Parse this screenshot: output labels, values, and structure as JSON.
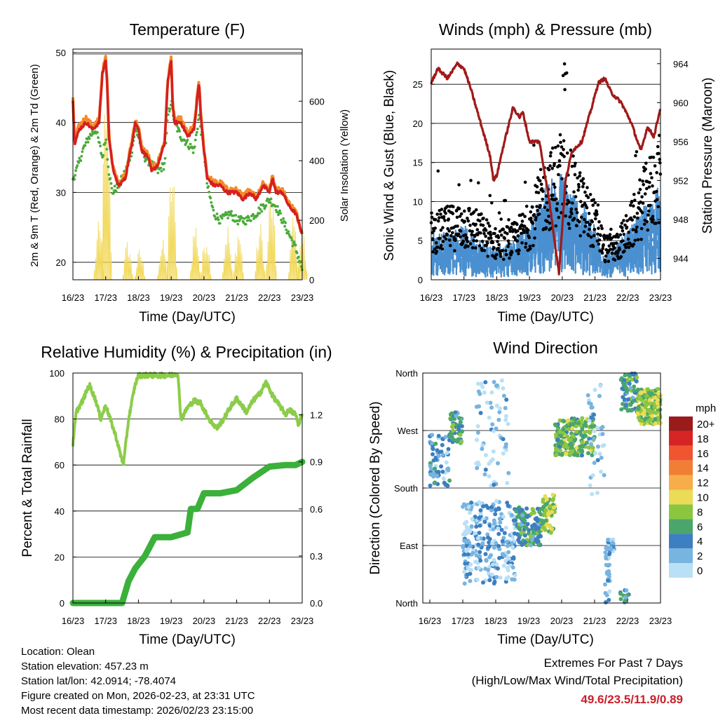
{
  "day_labels": [
    "16/23",
    "17/23",
    "18/23",
    "19/23",
    "20/23",
    "21/23",
    "22/23",
    "23/23"
  ],
  "xlabel": "Time (Day/UTC)",
  "colors": {
    "red": "#d42020",
    "orange": "#f58a2a",
    "green": "#4aaa3a",
    "yellow": "#f2d95a",
    "blue": "#4a90d0",
    "black": "#000000",
    "maroon": "#a01a1a",
    "rh": "#8ccc4a",
    "precip": "#3bb03b"
  },
  "chart_data": [
    {
      "id": "temperature",
      "type": "line",
      "title": "Temperature (F)",
      "ylabel": "2m & 9m T (Red, Orange) & 2m Td (Green)",
      "y2label": "Solar Insolation (Yellow)",
      "ylim": [
        17.5,
        50.5
      ],
      "yticks": [
        20,
        30,
        40,
        50
      ],
      "y2lim": [
        0,
        775
      ],
      "y2ticks": [
        0,
        200,
        400,
        600
      ],
      "series": [
        {
          "name": "2m T",
          "color": "red",
          "x": [
            0,
            0.05,
            0.2,
            0.4,
            0.6,
            0.8,
            0.9,
            1.0,
            1.05,
            1.1,
            1.2,
            1.3,
            1.4,
            1.6,
            1.8,
            1.9,
            2.0,
            2.1,
            2.3,
            2.4,
            2.6,
            2.8,
            2.9,
            3.0,
            3.05,
            3.1,
            3.3,
            3.5,
            3.7,
            3.85,
            3.9,
            4.0,
            4.1,
            4.3,
            4.5,
            4.7,
            5.0,
            5.2,
            5.4,
            5.6,
            5.8,
            6.0,
            6.1,
            6.2,
            6.4,
            6.6,
            6.8,
            7.0
          ],
          "y": [
            43,
            37,
            39,
            40,
            39,
            40,
            47,
            49,
            45,
            38,
            34,
            32,
            31,
            32,
            37,
            40,
            39,
            36,
            35,
            33,
            34,
            37,
            46,
            49,
            42,
            40,
            40,
            38,
            39,
            46,
            41,
            36,
            32,
            31,
            31,
            30,
            30,
            29,
            30,
            29,
            31,
            30,
            32,
            30,
            30,
            28,
            27,
            24
          ]
        },
        {
          "name": "9m T",
          "color": "orange",
          "x": [
            0,
            0.05,
            0.2,
            0.4,
            0.6,
            0.8,
            0.9,
            1.0,
            1.05,
            1.1,
            1.2,
            1.3,
            1.4,
            1.6,
            1.8,
            1.9,
            2.0,
            2.1,
            2.3,
            2.4,
            2.6,
            2.8,
            2.9,
            3.0,
            3.05,
            3.1,
            3.3,
            3.5,
            3.7,
            3.85,
            3.9,
            4.0,
            4.1,
            4.3,
            4.5,
            4.7,
            5.0,
            5.2,
            5.4,
            5.6,
            5.8,
            6.0,
            6.1,
            6.2,
            6.4,
            6.6,
            6.8,
            7.0
          ],
          "y": [
            43.3,
            37.4,
            39.6,
            40.6,
            39.4,
            40.4,
            47.3,
            49.2,
            45.3,
            38.4,
            34.4,
            32.4,
            31.4,
            32.4,
            37.4,
            40.3,
            39.3,
            36.4,
            35.4,
            33.4,
            34.4,
            37.4,
            46.2,
            49.2,
            42.3,
            40.4,
            40.4,
            38.4,
            39.4,
            46.2,
            41.3,
            36.4,
            32.4,
            31.4,
            31.4,
            30.4,
            30.3,
            29.4,
            30.4,
            29.3,
            31.4,
            30.4,
            32.3,
            30.4,
            30.3,
            28.4,
            27.3,
            24.3
          ]
        },
        {
          "name": "2m Td",
          "color": "green",
          "x": [
            0,
            0.1,
            0.3,
            0.5,
            0.7,
            0.9,
            1.0,
            1.1,
            1.2,
            1.4,
            1.6,
            1.8,
            1.9,
            2.0,
            2.2,
            2.4,
            2.6,
            2.8,
            2.9,
            3.0,
            3.1,
            3.3,
            3.5,
            3.7,
            3.85,
            4.0,
            4.1,
            4.3,
            4.5,
            4.8,
            5.0,
            5.3,
            5.6,
            5.8,
            6.0,
            6.2,
            6.4,
            6.6,
            6.8,
            7.0
          ],
          "y": [
            32,
            33,
            36,
            38,
            39,
            35,
            38,
            33,
            30,
            31,
            33,
            36,
            39,
            38,
            35,
            34,
            33,
            34,
            41,
            43,
            40,
            38,
            37,
            36,
            41,
            36,
            31,
            27,
            26,
            27,
            26,
            26,
            27,
            28,
            29,
            28,
            26,
            24,
            22,
            19
          ]
        },
        {
          "name": "Solar Insolation",
          "color": "yellow",
          "axis": "y2",
          "peaks": [
            {
              "x": 0.8,
              "v": 200
            },
            {
              "x": 1.03,
              "v": 770
            },
            {
              "x": 1.68,
              "v": 140
            },
            {
              "x": 2.05,
              "v": 110
            },
            {
              "x": 2.74,
              "v": 140
            },
            {
              "x": 3.03,
              "v": 410
            },
            {
              "x": 3.74,
              "v": 210
            },
            {
              "x": 4.07,
              "v": 180
            },
            {
              "x": 4.72,
              "v": 200
            },
            {
              "x": 5.06,
              "v": 190
            },
            {
              "x": 5.72,
              "v": 200
            },
            {
              "x": 6.06,
              "v": 330
            },
            {
              "x": 6.74,
              "v": 230
            },
            {
              "x": 7.0,
              "v": 190
            }
          ]
        }
      ]
    },
    {
      "id": "winds",
      "type": "line",
      "title": "Winds (mph) & Pressure (mb)",
      "ylabel": "Sonic Wind & Gust (Blue, Black)",
      "y2label": "Station Pressure (Maroon)",
      "ylim": [
        0,
        29.5
      ],
      "yticks": [
        0,
        5,
        10,
        15,
        20,
        25
      ],
      "y2lim": [
        941.8,
        965.5
      ],
      "y2ticks": [
        944,
        948,
        952,
        956,
        960,
        964
      ],
      "series": [
        {
          "name": "Sonic Wind",
          "color": "blue",
          "x": [
            0,
            0.5,
            1.0,
            1.5,
            2.0,
            2.5,
            3.0,
            3.5,
            4.0,
            4.5,
            5.0,
            5.3,
            5.6,
            6.0,
            6.5,
            7.0
          ],
          "y": [
            3.5,
            3.5,
            4,
            3,
            2.5,
            3,
            4,
            7,
            8,
            6,
            4,
            2,
            2.5,
            3.5,
            5.5,
            7
          ]
        },
        {
          "name": "Gust",
          "color": "black",
          "x": [
            0,
            0.5,
            1.0,
            1.5,
            2.0,
            2.5,
            3.0,
            3.5,
            4.0,
            4.5,
            5.0,
            5.3,
            5.6,
            6.0,
            6.5,
            7.0
          ],
          "y": [
            6,
            6.5,
            7,
            6,
            4.5,
            5,
            7,
            11,
            13,
            10,
            7,
            4,
            4,
            6,
            10,
            13
          ]
        },
        {
          "name": "Station Pressure",
          "color": "maroon",
          "axis": "y2",
          "x": [
            0,
            0.2,
            0.5,
            0.8,
            1.0,
            1.2,
            1.5,
            1.8,
            1.9,
            2.0,
            2.2,
            2.5,
            2.7,
            2.8,
            3.0,
            3.3,
            3.6,
            3.8,
            3.9,
            4.1,
            4.3,
            4.6,
            4.9,
            5.1,
            5.3,
            5.5,
            5.8,
            6.1,
            6.4,
            6.6,
            6.8,
            7.0
          ],
          "y": [
            962,
            963.5,
            962.5,
            964,
            963.5,
            961.5,
            958,
            954.5,
            952,
            952.5,
            955.5,
            959.5,
            958.5,
            959,
            956,
            956,
            950,
            945,
            942.5,
            952,
            955,
            956,
            959.5,
            962,
            962.5,
            961,
            960,
            958,
            955,
            957.5,
            956.5,
            959.5
          ]
        }
      ]
    },
    {
      "id": "humidity",
      "type": "line",
      "title": "Relative Humidity (%) & Precipitation (in)",
      "ylabel": "Percent & Total Rainfall",
      "ylim": [
        0,
        100
      ],
      "yticks": [
        0,
        20,
        40,
        60,
        80,
        100
      ],
      "y2lim": [
        0,
        1.4667
      ],
      "y2ticks": [
        0.0,
        0.3,
        0.6,
        0.9,
        1.2
      ],
      "y2ticklabels": [
        "0.0",
        "0.3",
        "0.6",
        "0.9",
        "1.2"
      ],
      "series": [
        {
          "name": "Relative Humidity",
          "color": "rh",
          "x": [
            0,
            0.1,
            0.3,
            0.5,
            0.7,
            0.85,
            1.0,
            1.3,
            1.5,
            1.55,
            1.7,
            1.9,
            2.0,
            2.5,
            3.0,
            3.2,
            3.3,
            3.5,
            3.7,
            3.9,
            4.0,
            4.2,
            4.4,
            4.6,
            4.8,
            5.0,
            5.3,
            5.5,
            5.7,
            5.9,
            6.1,
            6.3,
            6.5,
            6.6,
            6.8,
            6.9,
            7.0
          ],
          "y": [
            69,
            83,
            88,
            95,
            88,
            80,
            86,
            73,
            62,
            61,
            80,
            95,
            99,
            99,
            99,
            100,
            80,
            85,
            88,
            87,
            84,
            79,
            76,
            80,
            85,
            89,
            83,
            88,
            91,
            96,
            90,
            86,
            82,
            84,
            82,
            77,
            83
          ]
        },
        {
          "name": "Total Precipitation",
          "color": "precip",
          "axis": "y2",
          "x": [
            0,
            0.5,
            1.0,
            1.5,
            1.7,
            1.9,
            2.2,
            2.5,
            3.0,
            3.5,
            3.6,
            3.8,
            4.0,
            4.3,
            4.5,
            5.0,
            5.5,
            6.0,
            6.5,
            6.8,
            7.0
          ],
          "y": [
            0,
            0,
            0,
            0,
            0.14,
            0.22,
            0.3,
            0.42,
            0.42,
            0.45,
            0.6,
            0.6,
            0.7,
            0.7,
            0.7,
            0.72,
            0.8,
            0.87,
            0.88,
            0.88,
            0.9
          ]
        }
      ]
    },
    {
      "id": "wind_direction",
      "type": "scatter",
      "title": "Wind Direction",
      "ylabel": "Direction (Colored By Speed)",
      "yticks": [
        "North",
        "West",
        "South",
        "East",
        "North"
      ],
      "ylim": [
        0,
        360
      ],
      "colorbar": {
        "title": "mph",
        "labels": [
          "20+",
          "18",
          "16",
          "14",
          "12",
          "10",
          "8",
          "6",
          "4",
          "2",
          "0"
        ],
        "colors": [
          "#9b1b1b",
          "#d62424",
          "#f05530",
          "#f27e36",
          "#f7ad4a",
          "#ebdc55",
          "#8cc63f",
          "#4aa66a",
          "#3d7fc0",
          "#78b4e0",
          "#b9e0f6"
        ]
      },
      "clusters": [
        {
          "x0": 0.0,
          "x1": 0.6,
          "d0": 180,
          "d1": 265,
          "s": 3,
          "n": 70
        },
        {
          "x0": 0.6,
          "x1": 1.0,
          "d0": 250,
          "d1": 300,
          "s": 5,
          "n": 50
        },
        {
          "x0": 1.0,
          "x1": 2.6,
          "d0": 30,
          "d1": 160,
          "s": 2,
          "n": 260
        },
        {
          "x0": 1.4,
          "x1": 2.4,
          "d0": 180,
          "d1": 350,
          "s": 1,
          "n": 70
        },
        {
          "x0": 2.6,
          "x1": 3.4,
          "d0": 90,
          "d1": 150,
          "s": 5,
          "n": 130
        },
        {
          "x0": 3.4,
          "x1": 3.8,
          "d0": 110,
          "d1": 170,
          "s": 8,
          "n": 60
        },
        {
          "x0": 3.8,
          "x1": 5.0,
          "d0": 230,
          "d1": 290,
          "s": 7,
          "n": 200
        },
        {
          "x0": 4.8,
          "x1": 5.3,
          "d0": 170,
          "d1": 350,
          "s": 1,
          "n": 40
        },
        {
          "x0": 5.4,
          "x1": 5.6,
          "d0": 80,
          "d1": 100,
          "s": 2,
          "n": 30
        },
        {
          "x0": 5.3,
          "x1": 5.5,
          "d0": 0,
          "d1": 90,
          "s": 2,
          "n": 30
        },
        {
          "x0": 5.75,
          "x1": 6.05,
          "d0": 0,
          "d1": 20,
          "s": 4,
          "n": 12
        },
        {
          "x0": 5.8,
          "x1": 6.3,
          "d0": 300,
          "d1": 360,
          "s": 5,
          "n": 70
        },
        {
          "x0": 6.3,
          "x1": 7.0,
          "d0": 280,
          "d1": 335,
          "s": 8,
          "n": 170
        }
      ]
    }
  ],
  "footer": {
    "location": "Location: Olean",
    "elevation": "Station elevation: 457.23 m",
    "latlon": "Station lat/lon: 42.0914; -78.4074",
    "created": "Figure created on Mon, 2026-02-23, at 23:31 UTC",
    "recent": "Most recent data timestamp: 2026/02/23 23:15:00",
    "extremes_title": "Extremes For Past 7 Days",
    "extremes_sub": "(High/Low/Max Wind/Total Precipitation)",
    "extremes_values": "49.6/23.5/11.9/0.89"
  }
}
